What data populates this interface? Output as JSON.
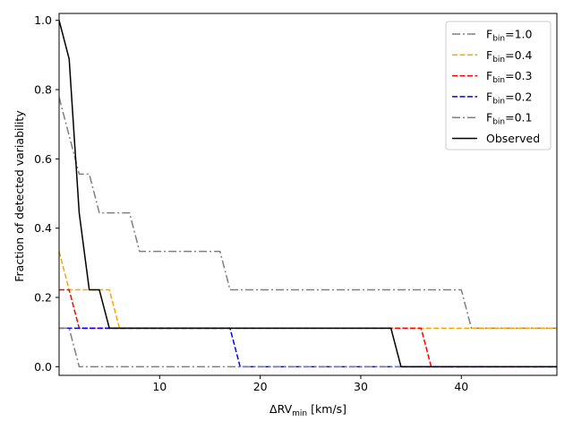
{
  "chart_data": {
    "type": "line",
    "xlabel": "ΔRV",
    "xlabel_sub": "min",
    "xlabel_unit": " [km/s]",
    "ylabel": "Fraction of detected variability",
    "xlim": [
      0,
      49.5
    ],
    "ylim": [
      -0.025,
      1.02
    ],
    "xticks": [
      10,
      20,
      30,
      40
    ],
    "yticks": [
      0.0,
      0.2,
      0.4,
      0.6,
      0.8,
      1.0
    ],
    "ytick_labels": [
      "0.0",
      "0.2",
      "0.4",
      "0.6",
      "0.8",
      "1.0"
    ],
    "legend_position": "upper right",
    "series": [
      {
        "name": "F_bin=1.0",
        "label_main": "F",
        "label_sub": "bin",
        "label_value": "=1.0",
        "color": "#808080",
        "style": "dashdot",
        "x": [
          0,
          1,
          2,
          3,
          4,
          5,
          6,
          7,
          8,
          16,
          17,
          40,
          41,
          49.5
        ],
        "y": [
          0.778,
          0.667,
          0.556,
          0.556,
          0.444,
          0.444,
          0.444,
          0.444,
          0.333,
          0.333,
          0.222,
          0.222,
          0.111,
          0.111
        ]
      },
      {
        "name": "F_bin=0.4",
        "label_main": "F",
        "label_sub": "bin",
        "label_value": "=0.4",
        "color": "#ffa500",
        "style": "dashed",
        "x": [
          0,
          1,
          5,
          6,
          49.5
        ],
        "y": [
          0.333,
          0.222,
          0.222,
          0.111,
          0.111
        ]
      },
      {
        "name": "F_bin=0.3",
        "label_main": "F",
        "label_sub": "bin",
        "label_value": "=0.3",
        "color": "#ff0000",
        "style": "dashed",
        "x": [
          0,
          1,
          2,
          36,
          37,
          49.5
        ],
        "y": [
          0.222,
          0.222,
          0.111,
          0.111,
          0.0,
          0.0
        ]
      },
      {
        "name": "F_bin=0.2",
        "label_main": "F",
        "label_sub": "bin",
        "label_value": "=0.2",
        "color": "#0000ff",
        "style": "dashed",
        "x": [
          0,
          17,
          18,
          49.5
        ],
        "y": [
          0.111,
          0.111,
          0.0,
          0.0
        ]
      },
      {
        "name": "F_bin=0.1",
        "label_main": "F",
        "label_sub": "bin",
        "label_value": "=0.1",
        "color": "#808080",
        "style": "dashdot",
        "x": [
          0,
          1,
          2,
          49.5
        ],
        "y": [
          0.111,
          0.111,
          0.0,
          0.0
        ]
      },
      {
        "name": "Observed",
        "label_main": "Observed",
        "label_sub": "",
        "label_value": "",
        "color": "#000000",
        "style": "solid",
        "x": [
          0,
          1,
          2,
          3,
          4,
          5,
          33,
          34,
          49.5
        ],
        "y": [
          1.0,
          0.889,
          0.444,
          0.222,
          0.222,
          0.111,
          0.111,
          0.0,
          0.0
        ]
      }
    ]
  }
}
